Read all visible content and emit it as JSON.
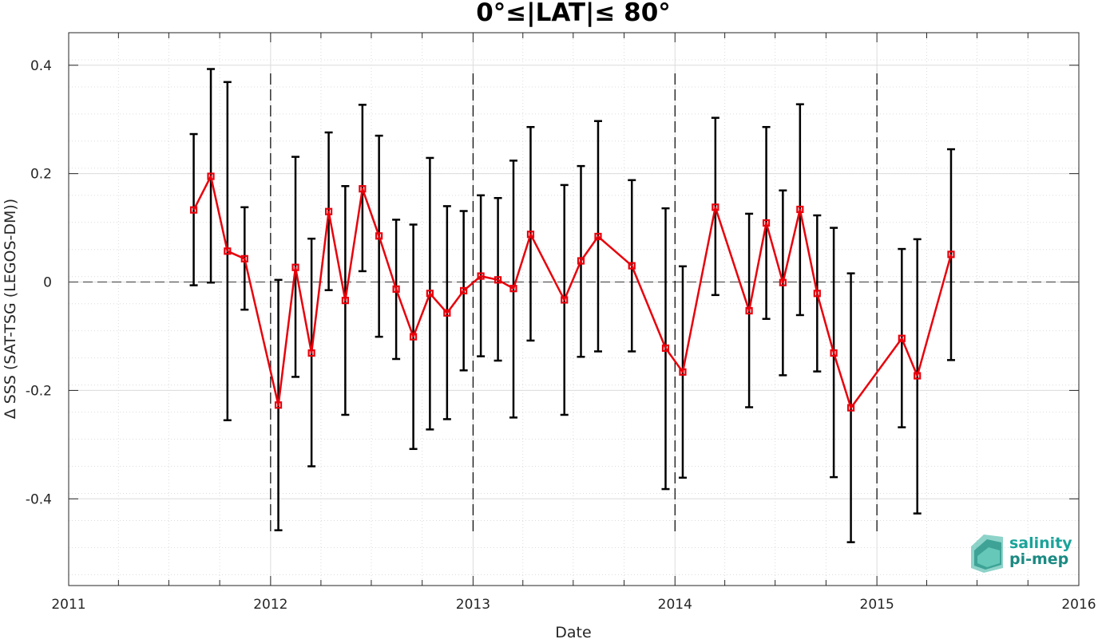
{
  "chart_data": {
    "type": "line",
    "title": "0°≤|LAT|≤ 80°",
    "xlabel": "Date",
    "ylabel": "Δ SSS (SAT-TSG (LEGOS-DM))",
    "xlim": [
      "2011-01-01",
      "2016-01-01"
    ],
    "ylim": [
      -0.56,
      0.46
    ],
    "x_ticks": [
      "2011",
      "2012",
      "2013",
      "2014",
      "2015",
      "2016"
    ],
    "y_ticks": [
      -0.4,
      -0.2,
      0,
      0.2,
      0.4
    ],
    "y_tick_labels": [
      "-0.4",
      "-0.2",
      "0",
      "0.2",
      "0.4"
    ],
    "grid": true,
    "minor_grid": true,
    "year_boundaries": [
      "2012-01-01",
      "2013-01-01",
      "2014-01-01",
      "2015-01-01"
    ],
    "zero_line": 0,
    "colors": {
      "line": "#e8000b",
      "errorbar": "#000000",
      "grid": "#dcdcdc"
    },
    "series": [
      {
        "x": [
          "2011-08-15",
          "2011-09-15",
          "2011-10-15",
          "2011-11-15",
          "2012-01-15",
          "2012-02-15",
          "2012-03-15",
          "2012-04-15",
          "2012-05-15",
          "2012-06-15",
          "2012-07-15",
          "2012-08-15",
          "2012-09-15",
          "2012-10-15",
          "2012-11-15",
          "2012-12-15",
          "2013-01-15",
          "2013-02-15",
          "2013-03-15",
          "2013-04-15",
          "2013-06-15",
          "2013-07-15",
          "2013-08-15",
          "2013-10-15",
          "2013-12-15",
          "2014-01-15",
          "2014-03-15",
          "2014-05-15",
          "2014-06-15",
          "2014-07-15",
          "2014-08-15",
          "2014-09-15",
          "2014-10-15",
          "2014-11-15",
          "2015-02-15",
          "2015-03-15",
          "2015-05-15"
        ],
        "values": [
          0.133,
          0.195,
          0.057,
          0.043,
          -0.227,
          0.027,
          -0.131,
          0.13,
          -0.034,
          0.172,
          0.085,
          -0.013,
          -0.101,
          -0.021,
          -0.057,
          -0.016,
          0.011,
          0.004,
          -0.012,
          0.088,
          -0.033,
          0.039,
          0.084,
          0.03,
          -0.122,
          -0.166,
          0.138,
          -0.053,
          0.109,
          -0.001,
          0.134,
          -0.021,
          -0.131,
          -0.232,
          -0.104,
          -0.173,
          0.051
        ],
        "err_low": [
          -0.006,
          -0.001,
          -0.255,
          -0.051,
          -0.458,
          -0.175,
          -0.34,
          -0.015,
          -0.245,
          0.02,
          -0.101,
          -0.142,
          -0.308,
          -0.272,
          -0.253,
          -0.163,
          -0.137,
          -0.145,
          -0.25,
          -0.108,
          -0.245,
          -0.138,
          -0.128,
          -0.128,
          -0.382,
          -0.361,
          -0.024,
          -0.231,
          -0.068,
          -0.172,
          -0.061,
          -0.165,
          -0.36,
          -0.48,
          -0.268,
          -0.427,
          -0.144
        ],
        "err_high": [
          0.273,
          0.393,
          0.369,
          0.138,
          0.004,
          0.231,
          0.08,
          0.276,
          0.177,
          0.327,
          0.27,
          0.115,
          0.106,
          0.229,
          0.14,
          0.131,
          0.16,
          0.155,
          0.224,
          0.286,
          0.179,
          0.214,
          0.297,
          0.188,
          0.136,
          0.029,
          0.303,
          0.126,
          0.286,
          0.169,
          0.328,
          0.123,
          0.1,
          0.016,
          0.061,
          0.079,
          0.245
        ]
      }
    ]
  },
  "logo": {
    "line1": "salinity",
    "line2": "pi-mep"
  }
}
